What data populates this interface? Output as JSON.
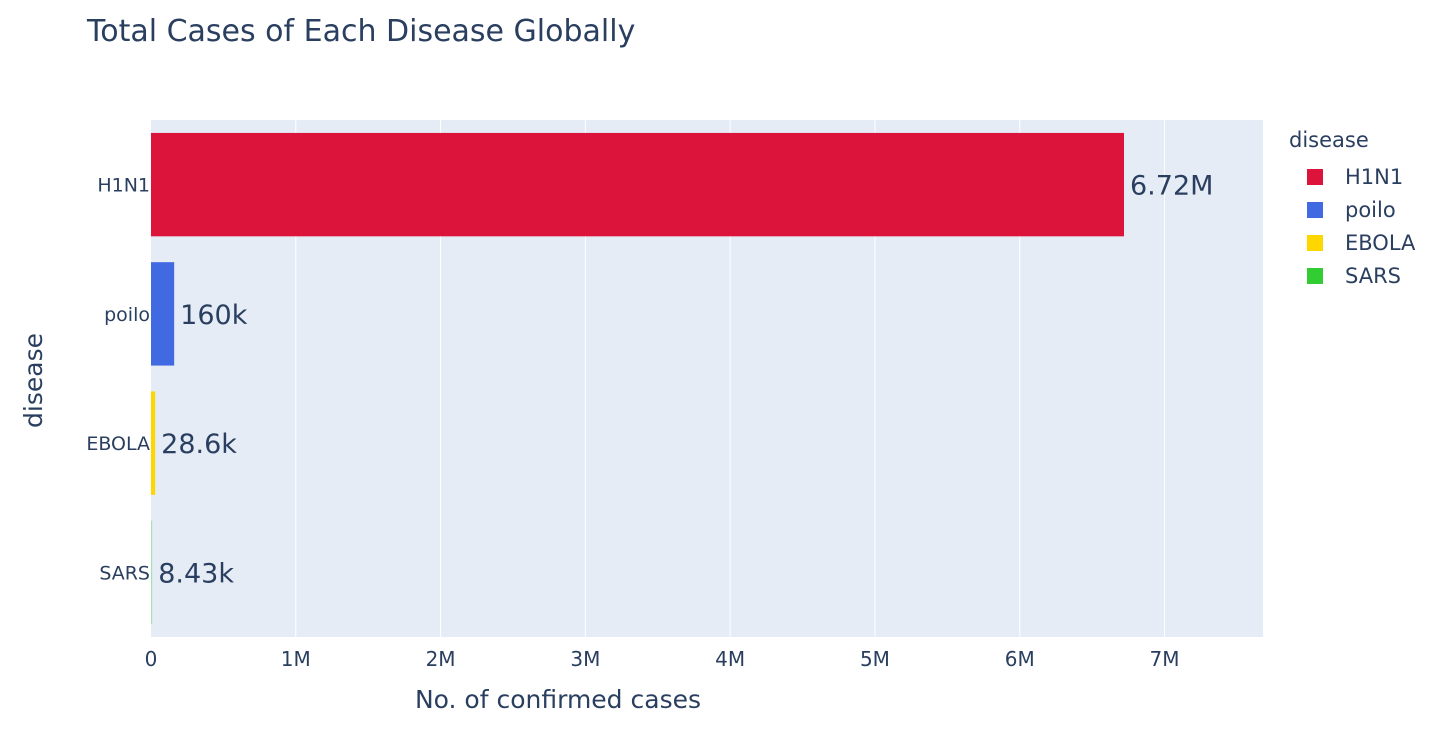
{
  "chart_data": {
    "type": "bar",
    "orientation": "horizontal",
    "title": "Total Cases of Each Disease Globally",
    "xlabel": "No. of confirmed cases",
    "ylabel": "disease",
    "xlim": [
      0,
      7680000
    ],
    "x_ticks": [
      0,
      1000000,
      2000000,
      3000000,
      4000000,
      5000000,
      6000000,
      7000000
    ],
    "x_tick_labels": [
      "0",
      "1M",
      "2M",
      "3M",
      "4M",
      "5M",
      "6M",
      "7M"
    ],
    "grid": true,
    "legend": {
      "title": "disease",
      "placement": "right"
    },
    "categories": [
      "H1N1",
      "poilo",
      "EBOLA",
      "SARS"
    ],
    "values": [
      6720000,
      160000,
      28600,
      8430
    ],
    "data_labels": [
      "6.72M",
      "160k",
      "28.6k",
      "8.43k"
    ],
    "colors": [
      "#dc143c",
      "#4169e1",
      "#ffd700",
      "#32cd32"
    ],
    "plot_background": "#e5ecf6"
  }
}
